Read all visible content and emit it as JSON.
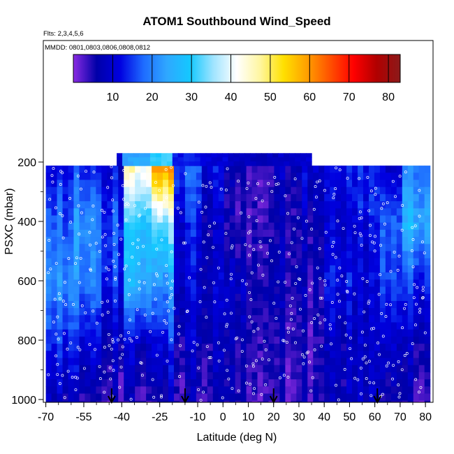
{
  "chart_data": {
    "type": "heatmap",
    "title": "ATOM1 Southbound Wind_Speed",
    "subtitle_flights": "Flts: 2,3,4,5,6",
    "subtitle_dates": "MMDD: 0801,0803,0806,0808,0812",
    "xlabel": "Latitude (deg N)",
    "ylabel": "PSXC (mbar)",
    "x_ticks": [
      -70,
      -55,
      -40,
      -25,
      -10,
      0,
      10,
      20,
      30,
      40,
      50,
      60,
      70,
      80
    ],
    "y_ticks": [
      200,
      400,
      600,
      800,
      1000
    ],
    "y_reversed": true,
    "colorbar_ticks": [
      10,
      20,
      30,
      40,
      50,
      60,
      70,
      80
    ],
    "colorbar_range": [
      0,
      83
    ],
    "colorbar_colors": [
      "#8a2be2",
      "#0000a8",
      "#0000e0",
      "#1e6bff",
      "#2fa7ff",
      "#14c8ff",
      "#a0e4ff",
      "#ffffff",
      "#fff6a0",
      "#ffe000",
      "#ffa000",
      "#ff5000",
      "#ff0000",
      "#b00000",
      "#8b1a1a"
    ],
    "profile_markers_lat": [
      -44,
      -15,
      20,
      61
    ],
    "wind_speed_field": [
      {
        "lat_range": [
          -70,
          -60
        ],
        "values_by_pressure": {
          "200": 12,
          "400": 18,
          "600": 22,
          "800": 14,
          "1000": 8
        }
      },
      {
        "lat_range": [
          -60,
          -50
        ],
        "values_by_pressure": {
          "200": 14,
          "400": 22,
          "600": 20,
          "800": 12,
          "1000": 6
        }
      },
      {
        "lat_range": [
          -50,
          -40
        ],
        "values_by_pressure": {
          "200": 10,
          "400": 16,
          "600": 14,
          "800": 8,
          "1000": 4
        }
      },
      {
        "lat_range": [
          -40,
          -30
        ],
        "values_by_pressure": {
          "200": 45,
          "400": 30,
          "600": 26,
          "800": 10,
          "1000": 5
        }
      },
      {
        "lat_range": [
          -30,
          -20
        ],
        "values_by_pressure": {
          "200": 62,
          "400": 34,
          "600": 22,
          "800": 12,
          "1000": 6
        }
      },
      {
        "lat_range": [
          -20,
          -10
        ],
        "values_by_pressure": {
          "200": 18,
          "400": 12,
          "600": 10,
          "800": 8,
          "1000": 5
        }
      },
      {
        "lat_range": [
          -10,
          0
        ],
        "values_by_pressure": {
          "200": 12,
          "400": 8,
          "600": 9,
          "800": 7,
          "1000": 6
        }
      },
      {
        "lat_range": [
          0,
          10
        ],
        "values_by_pressure": {
          "200": 6,
          "400": 4,
          "600": 8,
          "800": 6,
          "1000": 5
        }
      },
      {
        "lat_range": [
          10,
          20
        ],
        "values_by_pressure": {
          "200": 5,
          "400": 5,
          "600": 7,
          "800": 6,
          "1000": 4
        }
      },
      {
        "lat_range": [
          20,
          30
        ],
        "values_by_pressure": {
          "200": 8,
          "400": 6,
          "600": 7,
          "800": 5,
          "1000": 5
        }
      },
      {
        "lat_range": [
          30,
          40
        ],
        "values_by_pressure": {
          "200": 10,
          "400": 7,
          "600": 6,
          "800": 5,
          "1000": 6
        }
      },
      {
        "lat_range": [
          40,
          50
        ],
        "values_by_pressure": {
          "200": 12,
          "400": 10,
          "600": 12,
          "800": 8,
          "1000": 7
        }
      },
      {
        "lat_range": [
          50,
          60
        ],
        "values_by_pressure": {
          "200": 14,
          "400": 12,
          "600": 10,
          "800": 9,
          "1000": 8
        }
      },
      {
        "lat_range": [
          60,
          70
        ],
        "values_by_pressure": {
          "200": 10,
          "400": 18,
          "600": 16,
          "800": 10,
          "1000": 6
        }
      },
      {
        "lat_range": [
          70,
          80
        ],
        "values_by_pressure": {
          "200": 20,
          "400": 26,
          "600": 14,
          "800": 8,
          "1000": 5
        }
      }
    ]
  }
}
